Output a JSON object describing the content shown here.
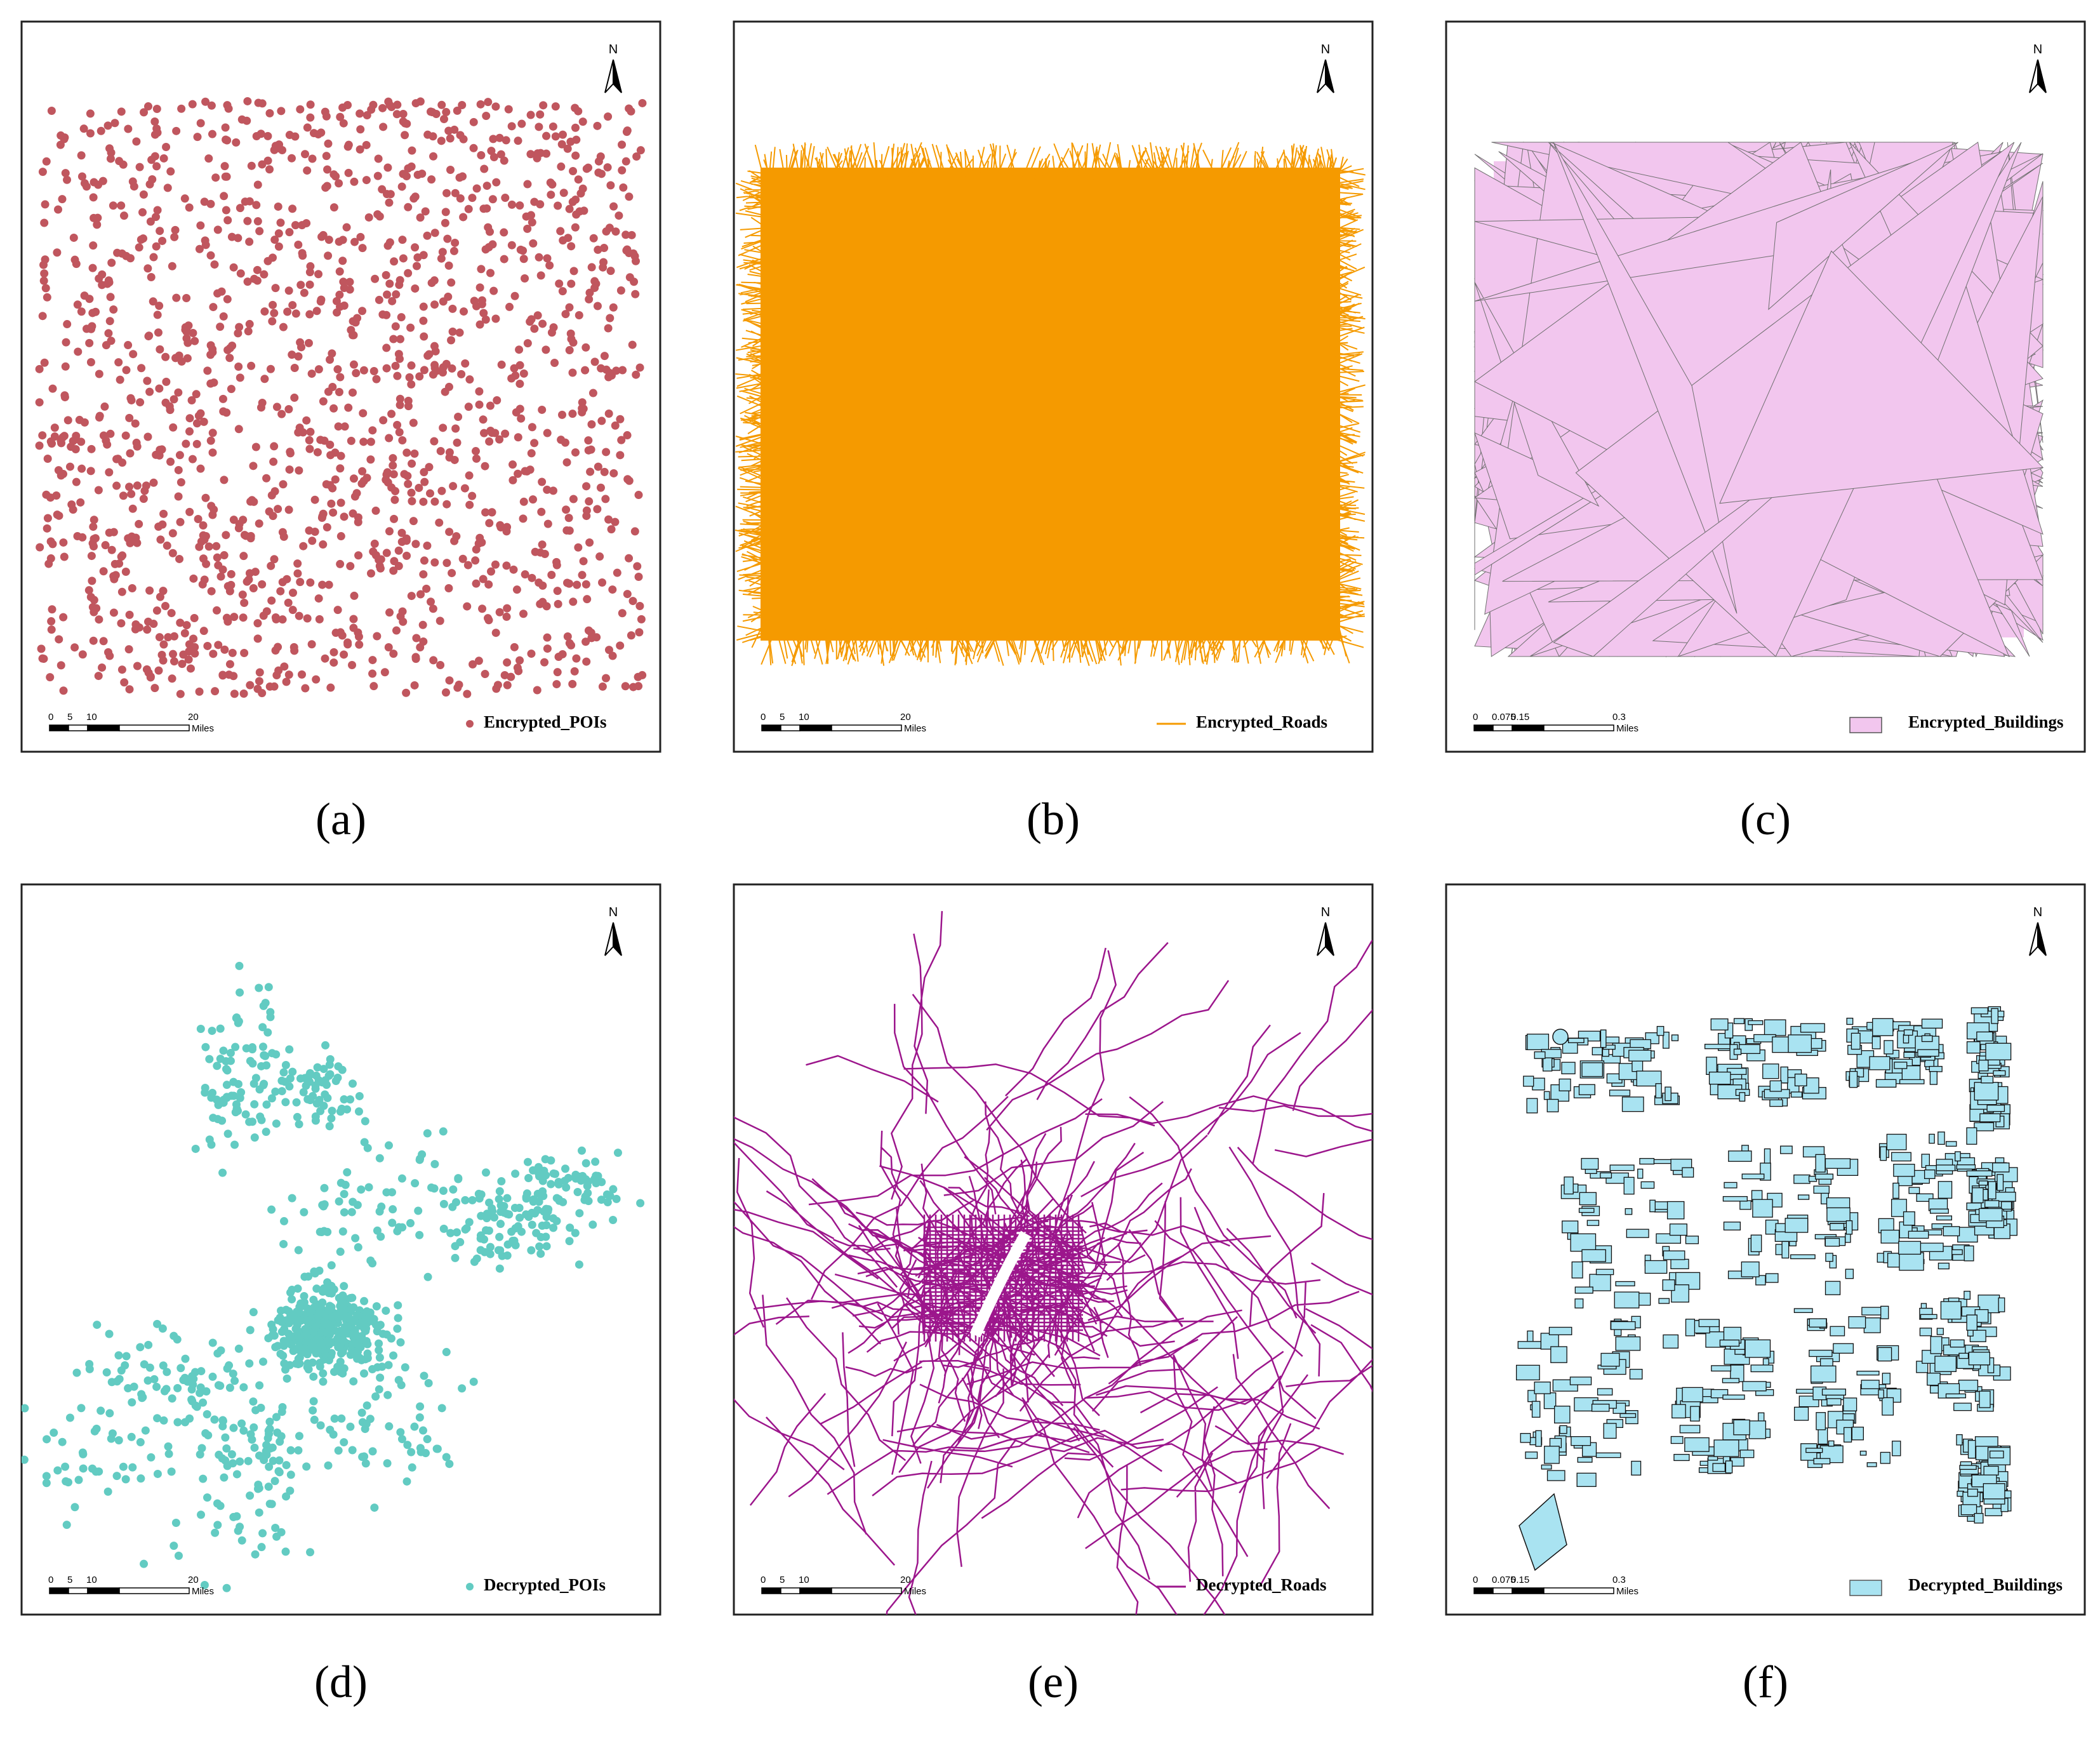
{
  "panels": [
    {
      "id": "a",
      "caption": "(a)",
      "legend": "Encrypted_POIs",
      "layer": "points",
      "color": "#c0565e",
      "scale_ticks": [
        "0",
        "5",
        "10",
        "20"
      ],
      "scale_unit": "Miles",
      "north": "N"
    },
    {
      "id": "b",
      "caption": "(b)",
      "legend": "Encrypted_Roads",
      "layer": "line-mesh",
      "color": "#f59a00",
      "scale_ticks": [
        "0",
        "5",
        "10",
        "20"
      ],
      "scale_unit": "Miles",
      "north": "N"
    },
    {
      "id": "c",
      "caption": "(c)",
      "legend": "Encrypted_Buildings",
      "layer": "polygon-shards",
      "color": "#f2c6ee",
      "scale_ticks": [
        "0",
        "0.075",
        "0.15",
        "0.3"
      ],
      "scale_unit": "Miles",
      "north": "N"
    },
    {
      "id": "d",
      "caption": "(d)",
      "legend": "Decrypted_POIs",
      "layer": "points-clustered",
      "color": "#62cbc2",
      "scale_ticks": [
        "0",
        "5",
        "10",
        "20"
      ],
      "scale_unit": "Miles",
      "north": "N"
    },
    {
      "id": "e",
      "caption": "(e)",
      "legend": "Decrypted_Roads",
      "layer": "road-network",
      "color": "#9c168c",
      "scale_ticks": [
        "0",
        "5",
        "10",
        "20"
      ],
      "scale_unit": "Miles",
      "north": "N"
    },
    {
      "id": "f",
      "caption": "(f)",
      "legend": "Decrypted_Buildings",
      "layer": "building-blocks",
      "color": "#a9e3f1",
      "scale_ticks": [
        "0",
        "0.075",
        "0.15",
        "0.3"
      ],
      "scale_unit": "Miles",
      "north": "N"
    }
  ]
}
